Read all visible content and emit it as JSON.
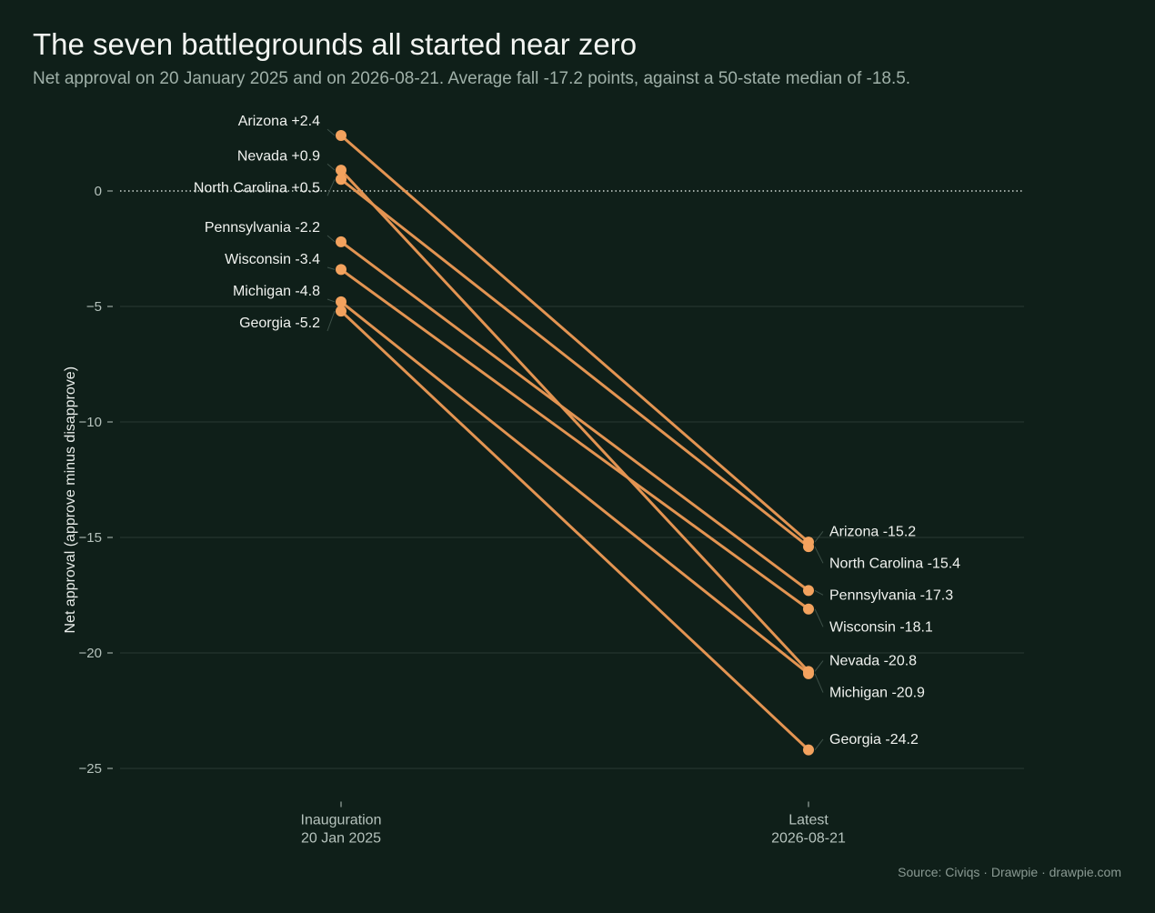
{
  "header": {
    "title": "The seven battlegrounds all started near zero",
    "subtitle": "Net approval on 20 January 2025 and on 2026-08-21. Average fall -17.2 points, against a 50-state median of -18.5."
  },
  "footer": {
    "source": "Source: Civiqs  ·  Drawpie · drawpie.com"
  },
  "colors": {
    "background": "#0f1f19",
    "line": "#e39452",
    "dot": "#f3a25e",
    "grid": "#2a3a33",
    "zero_line": "#cfd8d3"
  },
  "chart_data": {
    "type": "line",
    "chart_subtype": "slope",
    "ylabel": "Net approval (approve minus disapprove)",
    "ylim": [
      -26.2,
      2.6
    ],
    "yticks": [
      0,
      -5,
      -10,
      -15,
      -20,
      -25
    ],
    "ytick_labels": [
      "0",
      "−5",
      "−10",
      "−15",
      "−20",
      "−25"
    ],
    "reference_line": {
      "y": 0,
      "style": "dotted"
    },
    "categories": [
      {
        "line1": "Inauguration",
        "line2": "20 Jan 2025"
      },
      {
        "line1": "Latest",
        "line2": "2026-08-21"
      }
    ],
    "series": [
      {
        "name": "Arizona",
        "values": [
          2.4,
          -15.2
        ],
        "start_label": "+2.4",
        "end_label": "-15.2"
      },
      {
        "name": "Nevada",
        "values": [
          0.9,
          -20.8
        ],
        "start_label": "+0.9",
        "end_label": "-20.8"
      },
      {
        "name": "North Carolina",
        "values": [
          0.5,
          -15.4
        ],
        "start_label": "+0.5",
        "end_label": "-15.4"
      },
      {
        "name": "Pennsylvania",
        "values": [
          -2.2,
          -17.3
        ],
        "start_label": "-2.2",
        "end_label": "-17.3"
      },
      {
        "name": "Wisconsin",
        "values": [
          -3.4,
          -18.1
        ],
        "start_label": "-3.4",
        "end_label": "-18.1"
      },
      {
        "name": "Michigan",
        "values": [
          -4.8,
          -20.9
        ],
        "start_label": "-4.8",
        "end_label": "-20.9"
      },
      {
        "name": "Georgia",
        "values": [
          -5.2,
          -24.2
        ],
        "start_label": "-5.2",
        "end_label": "-24.2"
      }
    ]
  }
}
